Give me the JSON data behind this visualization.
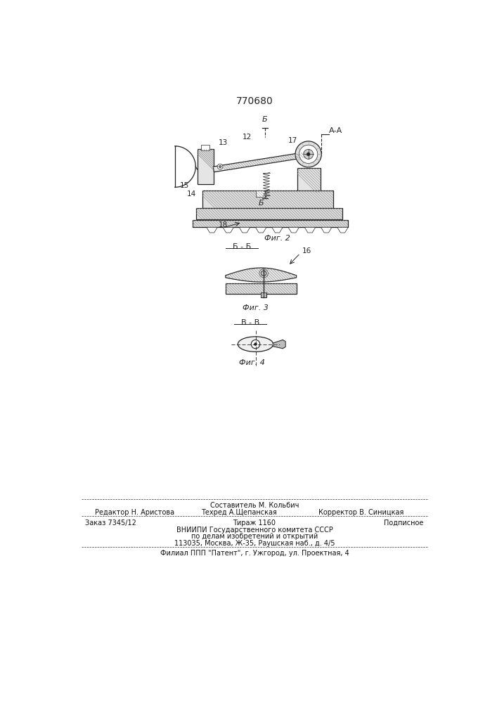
{
  "patent_number": "770680",
  "bg_color": "#ffffff",
  "fig_width": 7.07,
  "fig_height": 10.0,
  "footer": {
    "sestavitel_label": "Составитель М. Кольбич",
    "redaktor_label": "Редактор Н. Аристова",
    "tehred_label": "Техред А.Щепанская",
    "korrektor_label": "Корректор В. Синицкая",
    "zakaz_label": "Заказ 7345/12",
    "tirazh_label": "Тираж 1160",
    "podpisnoe_label": "Подписное",
    "vniipи_line1": "ВНИИПИ Государственного комитета СССР",
    "vniipи_line2": "по делам изобретений и открытий",
    "vniipи_line3": "113035, Москва, Ж-35, Раушская наб., д. 4/5",
    "filial_label": "Филиал ППП \"Патент\", г. Ужгород, ул. Проектная, 4"
  }
}
